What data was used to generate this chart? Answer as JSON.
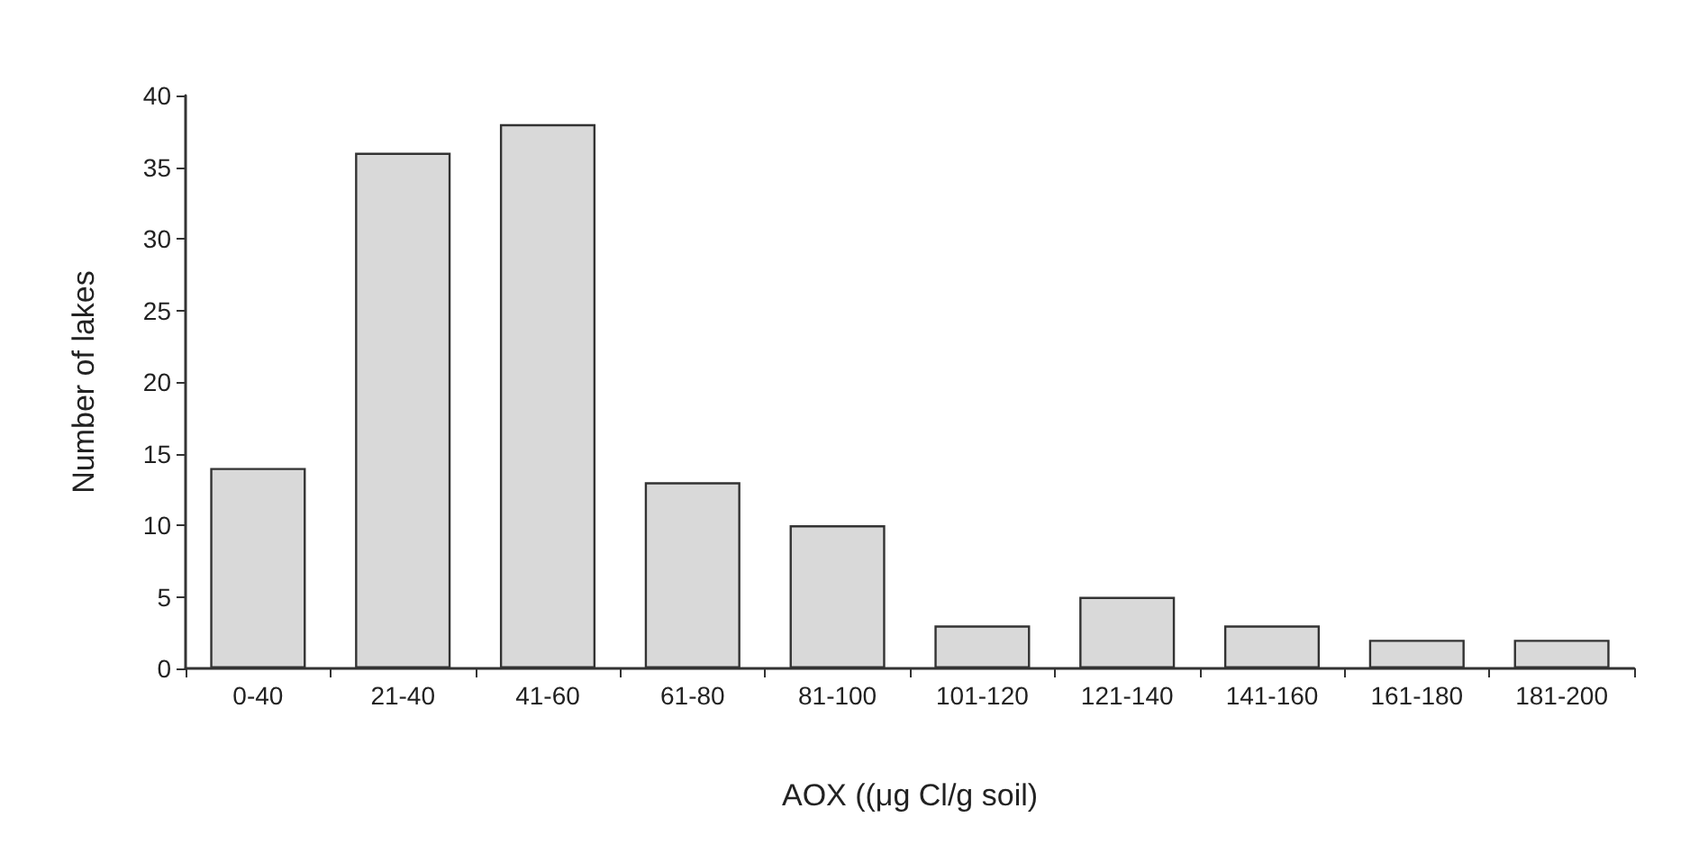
{
  "chart_data": {
    "type": "bar",
    "xlabel": "AOX ((μg Cl/g soil)",
    "ylabel": "Number of lakes",
    "categories": [
      "0-40",
      "21-40",
      "41-60",
      "61-80",
      "81-100",
      "101-120",
      "121-140",
      "141-160",
      "161-180",
      "181-200"
    ],
    "values": [
      14,
      36,
      38,
      13,
      10,
      3,
      5,
      3,
      2,
      2
    ],
    "color": "#d9d9d9",
    "ylim": [
      0,
      40
    ],
    "yticks": [
      0,
      5,
      10,
      15,
      20,
      25,
      30,
      35,
      40
    ],
    "grid": false
  }
}
